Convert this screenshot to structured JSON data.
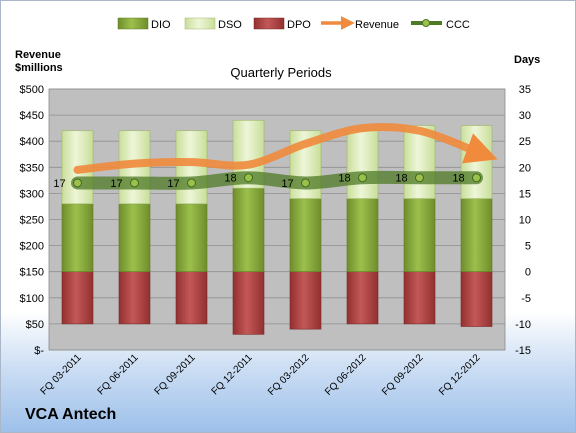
{
  "company": "VCA Antech",
  "chart_data": {
    "type": "bar",
    "title": "Quarterly Periods",
    "y_left_label_line1": "Revenue",
    "y_left_label_line2": "$millions",
    "y_right_label": "Days",
    "categories": [
      "FQ 03-2011",
      "FQ 06-2011",
      "FQ 09-2011",
      "FQ 12-2011",
      "FQ 03-2012",
      "FQ 06-2012",
      "FQ 09-2012",
      "FQ 12-2012"
    ],
    "ylim_left": [
      0,
      500
    ],
    "ylim_right": [
      -15,
      35
    ],
    "left_ticks": [
      "$-",
      "$50",
      "$100",
      "$150",
      "$200",
      "$250",
      "$300",
      "$350",
      "$400",
      "$450",
      "$500"
    ],
    "right_ticks": [
      "-15",
      "-10",
      "-5",
      "0",
      "5",
      "10",
      "15",
      "20",
      "25",
      "30",
      "35"
    ],
    "legend_position": "top",
    "series": [
      {
        "name": "DIO",
        "axis": "right",
        "color": "#86a63c",
        "values": [
          13,
          13,
          13,
          16,
          14,
          14,
          14,
          14
        ]
      },
      {
        "name": "DSO",
        "axis": "right",
        "color": "#dbebb5",
        "values": [
          14,
          14,
          14,
          13,
          13,
          13,
          14,
          14
        ]
      },
      {
        "name": "DPO",
        "axis": "right",
        "color": "#b34545",
        "values": [
          -10,
          -10,
          -10,
          -12,
          -11,
          -10,
          -10,
          -10.5
        ]
      },
      {
        "name": "Revenue",
        "axis": "left",
        "color": "#f08a3c",
        "values": [
          345,
          357,
          360,
          355,
          395,
          425,
          420,
          380
        ]
      },
      {
        "name": "CCC",
        "axis": "right",
        "color": "#4e7a26",
        "values": [
          17,
          17,
          17,
          18,
          17,
          18,
          18,
          18
        ]
      }
    ],
    "ccc_labels": [
      "17",
      "17",
      "17",
      "18",
      "17",
      "18",
      "18",
      "18"
    ]
  }
}
